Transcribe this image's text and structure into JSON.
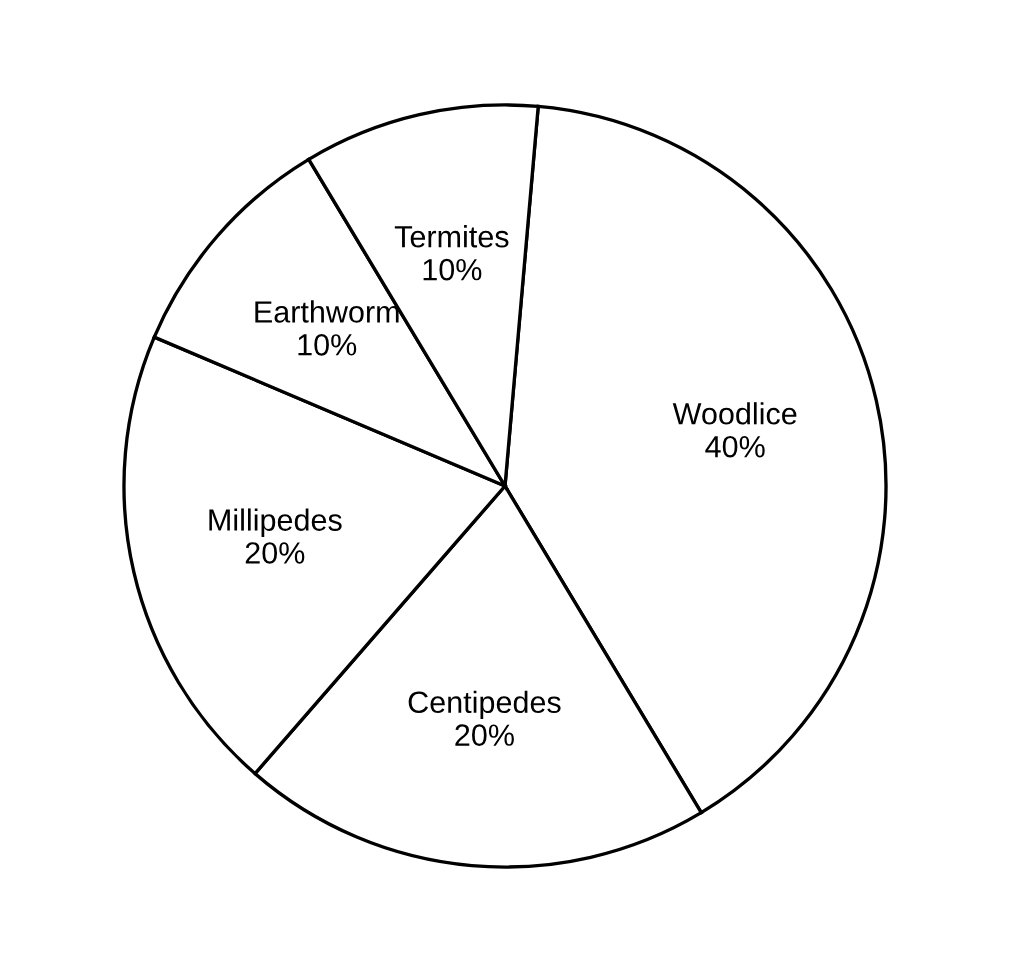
{
  "chart_data": {
    "type": "pie",
    "categories": [
      "Woodlice",
      "Centipedes",
      "Millipedes",
      "Earthworm",
      "Termites"
    ],
    "values": [
      40,
      20,
      20,
      10,
      10
    ],
    "value_labels": [
      "40%",
      "20%",
      "20%",
      "10%",
      "10%"
    ],
    "colors": [
      "#ffffff",
      "#ffffff",
      "#ffffff",
      "#ffffff",
      "#ffffff"
    ]
  }
}
